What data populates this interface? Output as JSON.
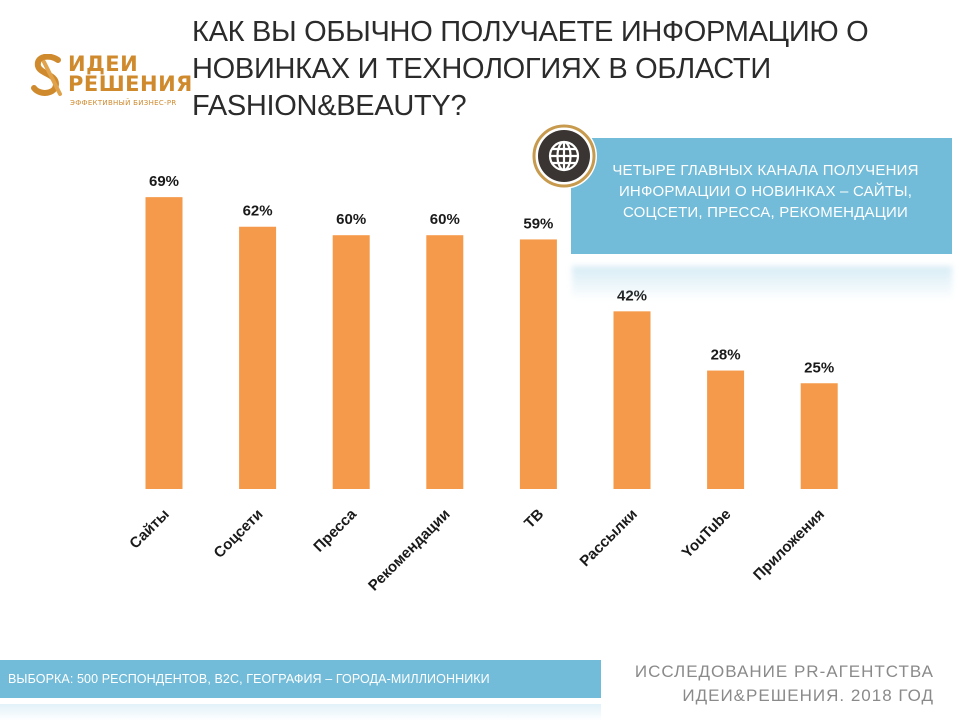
{
  "header": {
    "title": "КАК ВЫ ОБЫЧНО ПОЛУЧАЕТЕ ИНФОРМАЦИЮ О НОВИНКАХ И ТЕХНОЛОГИЯХ В ОБЛАСТИ FASHION&BEAUTY?"
  },
  "logo": {
    "line1": "ИДЕИ",
    "line2": "РЕШЕНИЯ",
    "tagline": "ЭФФЕКТИВНЫЙ БИЗНЕС-PR",
    "color": "#d08a2e"
  },
  "callout": {
    "text": "ЧЕТЫРЕ ГЛАВНЫХ КАНАЛА ПОЛУЧЕНИЯ ИНФОРМАЦИИ О НОВИНКАХ – САЙТЫ, СОЦСЕТИ, ПРЕССА, РЕКОМЕНДАЦИИ",
    "icon": "globe-icon",
    "background": "#72bcd9"
  },
  "footer": {
    "sample": "ВЫБОРКА: 500 РЕСПОНДЕНТОВ, В2С, ГЕОГРАФИЯ – ГОРОДА-МИЛЛИОННИКИ",
    "source_line1": "ИССЛЕДОВАНИЕ PR-АГЕНТСТВА",
    "source_line2": "ИДЕИ&РЕШЕНИЯ. 2018 ГОД"
  },
  "chart_data": {
    "type": "bar",
    "categories": [
      "Сайты",
      "Соцсети",
      "Пресса",
      "Рекомендации",
      "ТВ",
      "Рассылки",
      "YouTube",
      "Приложения"
    ],
    "values": [
      69,
      62,
      60,
      60,
      59,
      42,
      28,
      25
    ],
    "data_labels": [
      "69%",
      "62%",
      "60%",
      "60%",
      "59%",
      "42%",
      "28%",
      "25%"
    ],
    "unit": "%",
    "ylim": [
      0,
      100
    ],
    "grid": false,
    "legend": "none",
    "bar_color": "#f59a4a"
  }
}
